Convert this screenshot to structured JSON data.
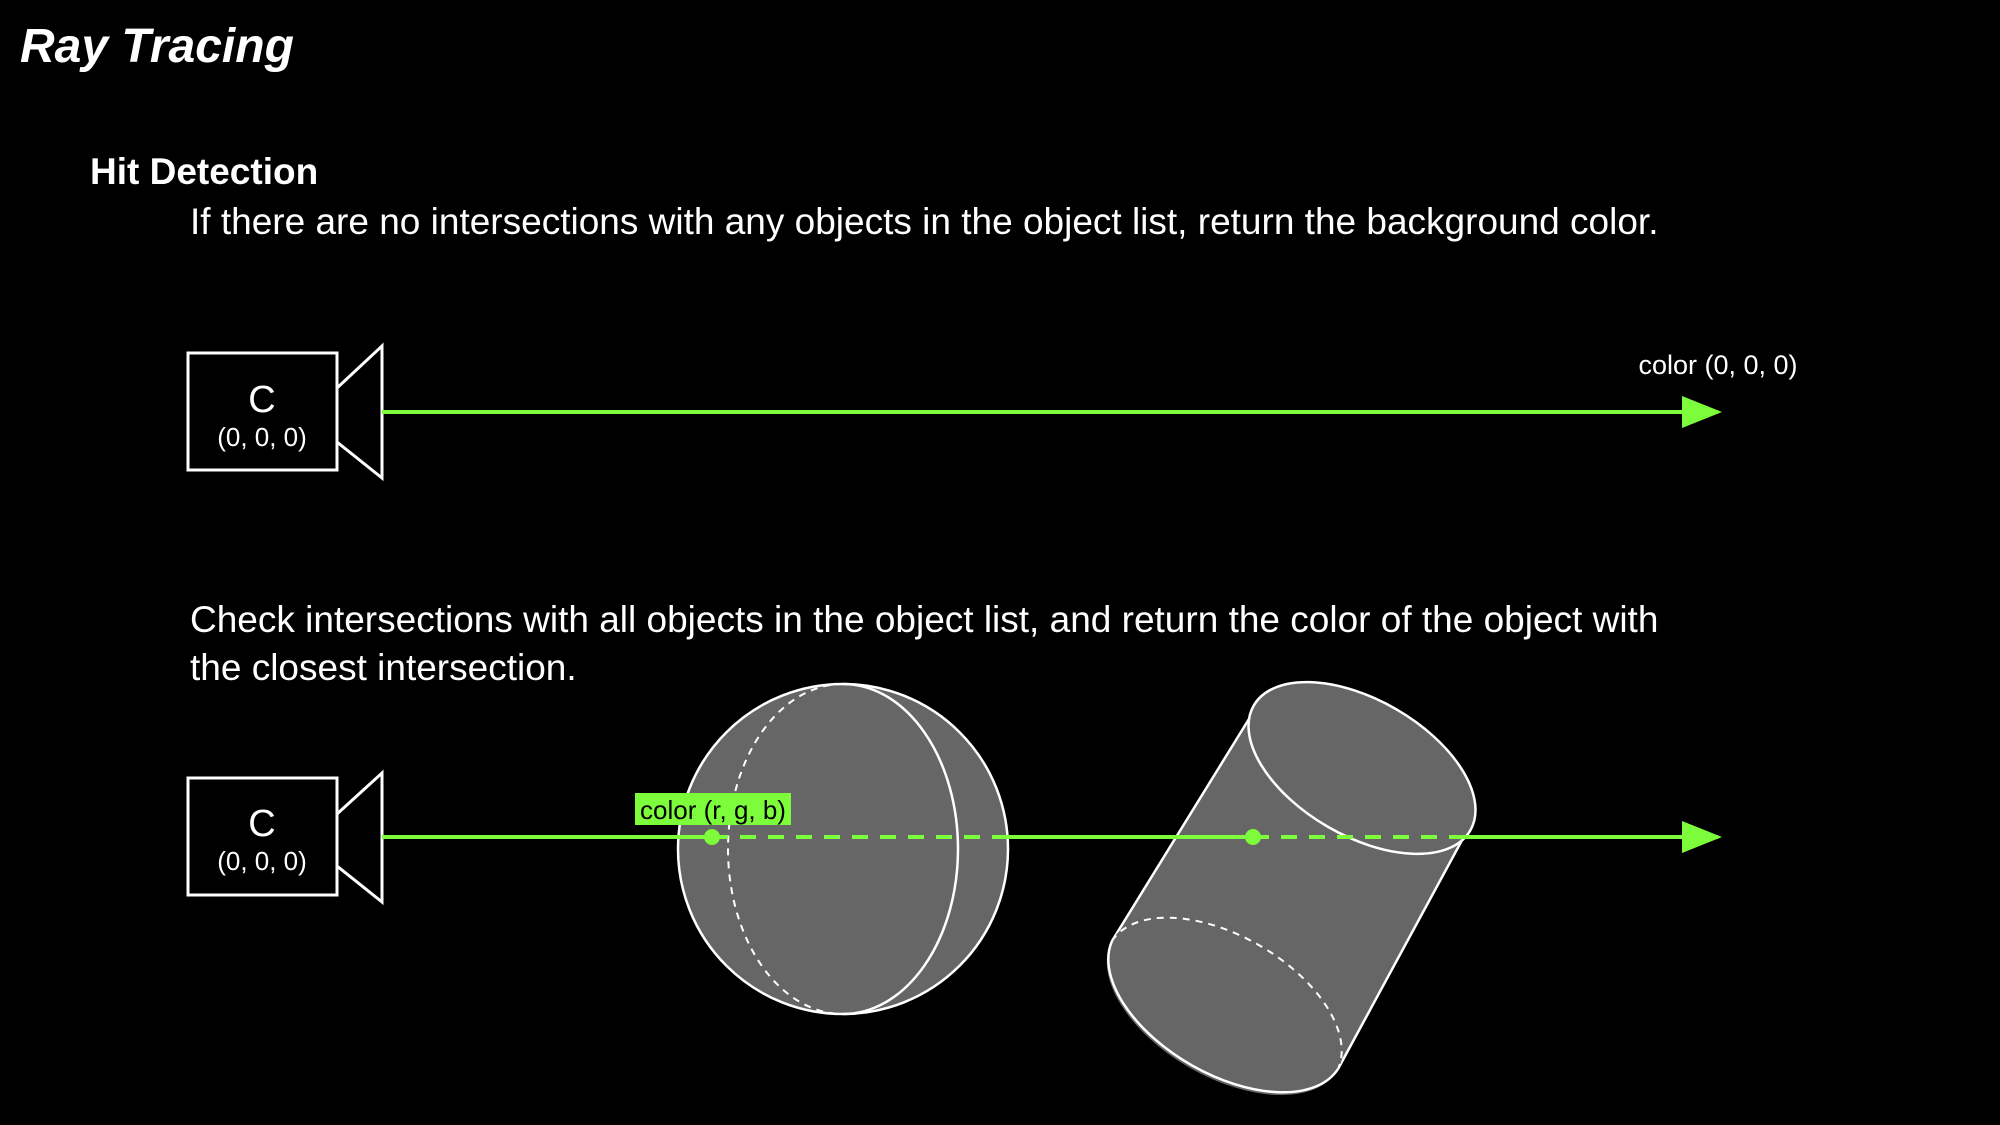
{
  "title": "Ray Tracing",
  "section": {
    "heading": "Hit Detection",
    "paragraph_1": "If there are no intersections with any objects in the object list, return the background color.",
    "paragraph_2": "Check intersections with all objects in the object list, and return the color of the object with the closest intersection."
  },
  "diagram_top": {
    "camera_label": "C",
    "camera_coords": "(0, 0, 0)",
    "ray_result_label": "color (0, 0, 0)"
  },
  "diagram_bottom": {
    "camera_label": "C",
    "camera_coords": "(0, 0, 0)",
    "hit_label": "color (r, g, b)"
  },
  "colors": {
    "background": "#000000",
    "ray": "#7cfc3a",
    "object_fill": "#666666",
    "object_stroke": "#ffffff",
    "hit_label_bg": "#7cfc3a"
  }
}
